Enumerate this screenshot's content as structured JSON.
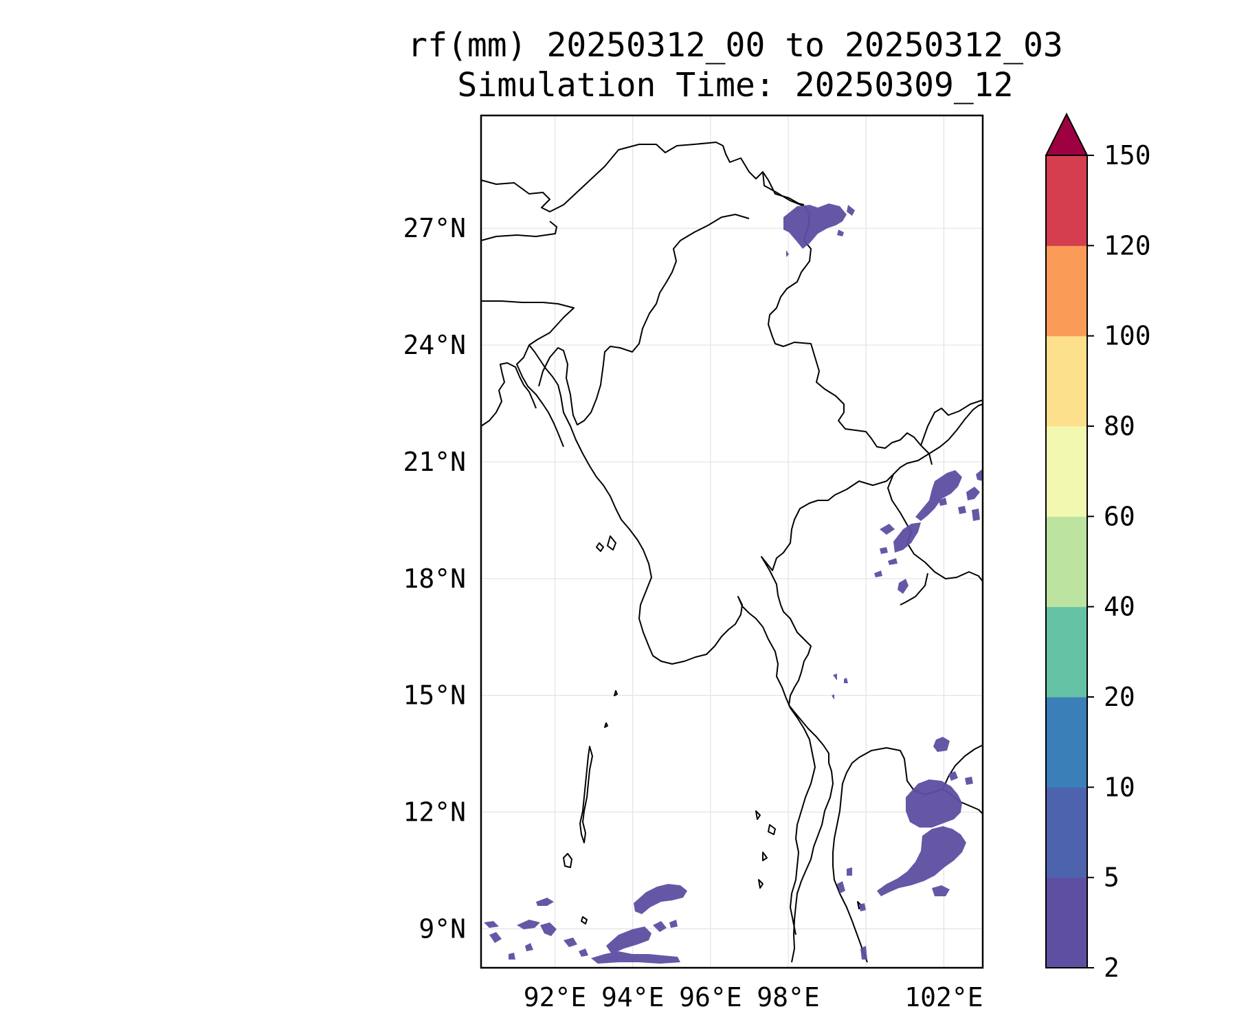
{
  "title": {
    "line1": "rf(mm) 20250312_00 to 20250312_03",
    "line2": "Simulation Time: 20250309_12"
  },
  "map": {
    "lat_labels": [
      "27°N",
      "24°N",
      "21°N",
      "18°N",
      "15°N",
      "12°N",
      "9°N"
    ],
    "lon_labels": [
      "92°E",
      "94°E",
      "96°E",
      "98°E",
      "102°E"
    ],
    "lat_values": [
      27,
      24,
      21,
      18,
      15,
      12,
      9
    ],
    "lon_values": [
      92,
      94,
      96,
      98,
      102
    ],
    "extent": {
      "lon_min": 90.1,
      "lon_max": 103.0,
      "lat_min": 8.0,
      "lat_max": 29.9
    },
    "gridlines": true,
    "rain_color": "#5e4fa2"
  },
  "colorbar": {
    "levels": [
      "2",
      "5",
      "10",
      "20",
      "40",
      "60",
      "80",
      "100",
      "120",
      "150"
    ],
    "colors": [
      "#5e4fa2",
      "#4e63ad",
      "#3a7fb8",
      "#66c2a5",
      "#bce4a0",
      "#f2f8b0",
      "#fde08b",
      "#fa9c58",
      "#d53e4f"
    ],
    "extend_color": "#9e0142",
    "extend": "max"
  }
}
